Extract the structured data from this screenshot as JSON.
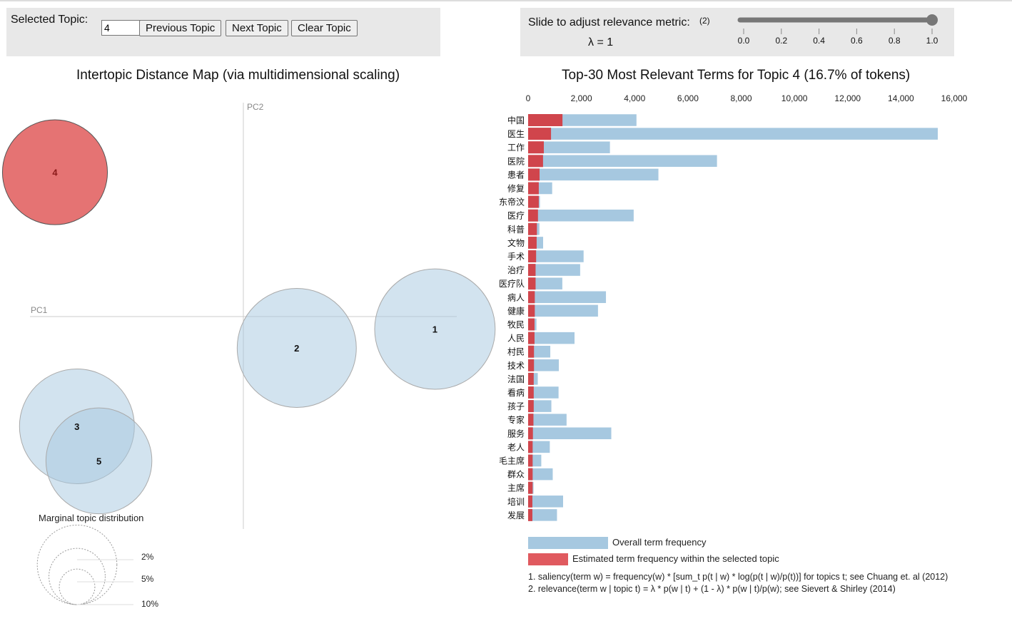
{
  "controls": {
    "selected_topic_label": "Selected Topic:",
    "selected_topic_value": "4",
    "previous_label": "Previous Topic",
    "next_label": "Next Topic",
    "clear_label": "Clear Topic",
    "slider_label": "Slide to adjust relevance metric:",
    "slider_footnote": "(2)",
    "lambda_text": "λ = 1",
    "lambda_value": 1,
    "slider_ticks": [
      "0.0",
      "0.2",
      "0.4",
      "0.6",
      "0.8",
      "1.0"
    ]
  },
  "colors": {
    "selected_topic": "#e57373",
    "topic_circle": "#a6c8e0",
    "overall_bar": "#a6c8e0",
    "topic_bar": "#d0454c",
    "panel_bg": "#e8e8e8"
  },
  "chart_data": [
    {
      "type": "scatter",
      "title": "Intertopic Distance Map (via multidimensional scaling)",
      "xlabel": "PC1",
      "ylabel": "PC2",
      "note": "bubble size = marginal topic distribution; positions in relative PC units",
      "points": [
        {
          "topic": "1",
          "pc1": 0.61,
          "pc2": -0.04,
          "size_pct": 22.0,
          "selected": false
        },
        {
          "topic": "2",
          "pc1": 0.17,
          "pc2": -0.1,
          "size_pct": 21.5,
          "selected": false
        },
        {
          "topic": "3",
          "pc1": -0.53,
          "pc2": -0.35,
          "size_pct": 20.0,
          "selected": false
        },
        {
          "topic": "4",
          "pc1": -0.6,
          "pc2": 0.46,
          "size_pct": 16.7,
          "selected": true
        },
        {
          "topic": "5",
          "pc1": -0.46,
          "pc2": -0.46,
          "size_pct": 17.0,
          "selected": false
        }
      ],
      "size_legend": {
        "title": "Marginal topic distribution",
        "labels": [
          "2%",
          "5%",
          "10%"
        ],
        "values": [
          2,
          5,
          10
        ]
      }
    },
    {
      "type": "bar",
      "orientation": "horizontal",
      "title": "Top-30 Most Relevant Terms for Topic 4 (16.7% of tokens)",
      "xlim": [
        0,
        16000
      ],
      "xticks": [
        "0",
        "2,000",
        "4,000",
        "6,000",
        "8,000",
        "10,000",
        "12,000",
        "14,000",
        "16,000"
      ],
      "xtick_values": [
        0,
        2000,
        4000,
        6000,
        8000,
        10000,
        12000,
        14000,
        16000
      ],
      "categories": [
        "中国",
        "医生",
        "工作",
        "医院",
        "患者",
        "修复",
        "东帝汶",
        "医疗",
        "科普",
        "文物",
        "手术",
        "治疗",
        "医疗队",
        "病人",
        "健康",
        "牧民",
        "人民",
        "村民",
        "技术",
        "法国",
        "看病",
        "孩子",
        "专家",
        "服务",
        "老人",
        "毛主席",
        "群众",
        "主席",
        "培训",
        "发展"
      ],
      "series": [
        {
          "name": "Overall term frequency",
          "values": [
            4075,
            15390,
            3080,
            7100,
            4900,
            910,
            450,
            3970,
            430,
            570,
            2090,
            1960,
            1290,
            2930,
            2630,
            320,
            1750,
            840,
            1160,
            370,
            1150,
            880,
            1450,
            3130,
            820,
            500,
            930,
            210,
            1320,
            1090
          ]
        },
        {
          "name": "Estimated term frequency within the selected topic",
          "values": [
            1290,
            860,
            590,
            560,
            430,
            400,
            400,
            370,
            330,
            320,
            300,
            280,
            280,
            250,
            250,
            240,
            240,
            220,
            220,
            210,
            210,
            210,
            200,
            180,
            170,
            170,
            170,
            170,
            160,
            160
          ]
        }
      ],
      "legend": [
        "Overall term frequency",
        "Estimated term frequency within the selected topic"
      ]
    }
  ],
  "footnotes": [
    "1. saliency(term w) = frequency(w) * [sum_t p(t | w) * log(p(t | w)/p(t))] for topics t; see Chuang et. al (2012)",
    "2. relevance(term w | topic t) = λ * p(w | t) + (1 - λ) * p(w | t)/p(w); see Sievert & Shirley (2014)"
  ]
}
